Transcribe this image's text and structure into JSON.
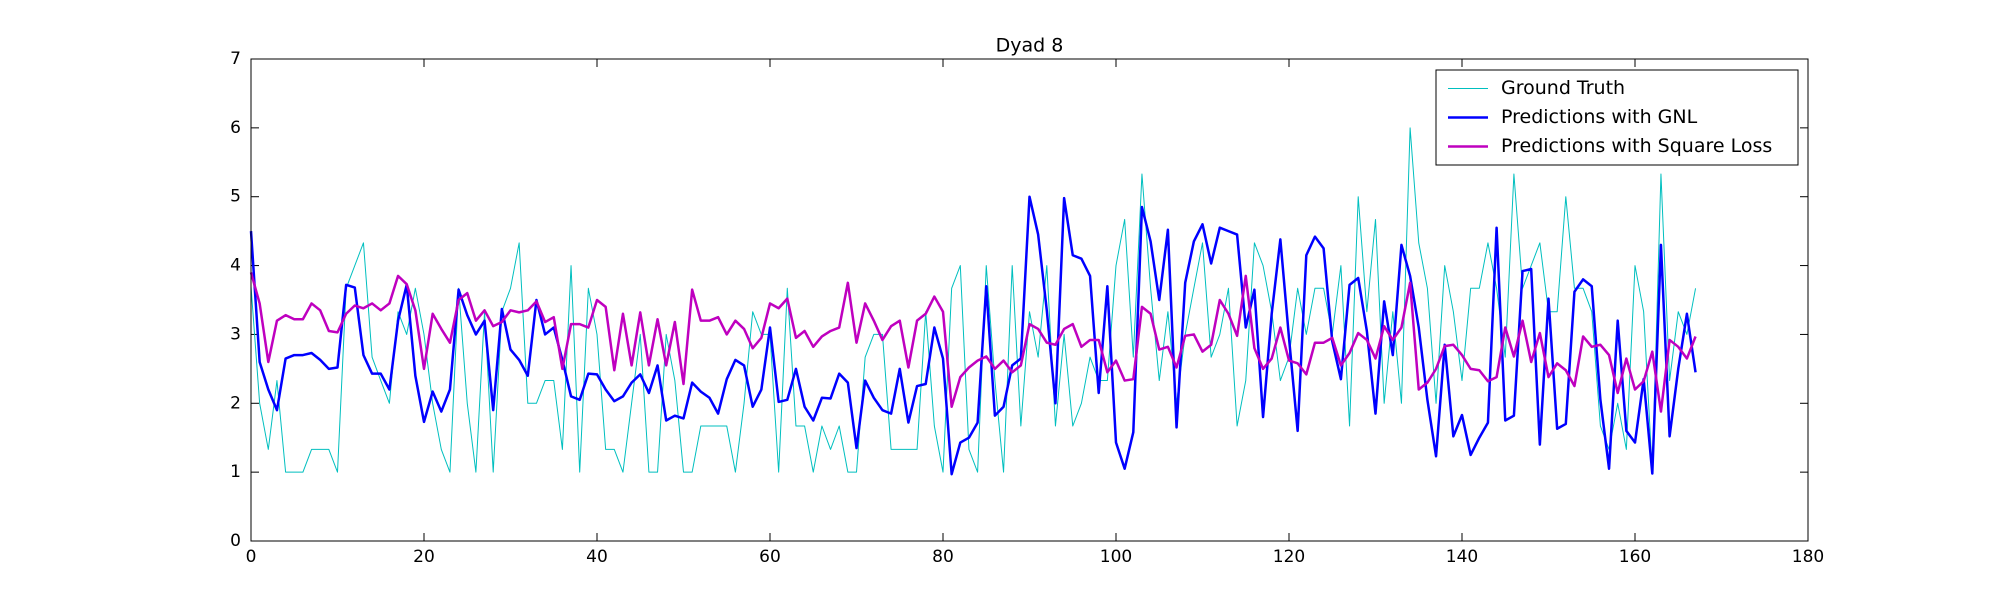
{
  "chart_data": {
    "type": "line",
    "title": "Dyad 8",
    "x": [
      0,
      1,
      2,
      3,
      4,
      5,
      6,
      7,
      8,
      9,
      10,
      11,
      12,
      13,
      14,
      15,
      16,
      17,
      18,
      19,
      20,
      21,
      22,
      23,
      24,
      25,
      26,
      27,
      28,
      29,
      30,
      31,
      32,
      33,
      34,
      35,
      36,
      37,
      38,
      39,
      40,
      41,
      42,
      43,
      44,
      45,
      46,
      47,
      48,
      49,
      50,
      51,
      52,
      53,
      54,
      55,
      56,
      57,
      58,
      59,
      60,
      61,
      62,
      63,
      64,
      65,
      66,
      67,
      68,
      69,
      70,
      71,
      72,
      73,
      74,
      75,
      76,
      77,
      78,
      79,
      80,
      81,
      82,
      83,
      84,
      85,
      86,
      87,
      88,
      89,
      90,
      91,
      92,
      93,
      94,
      95,
      96,
      97,
      98,
      99,
      100,
      101,
      102,
      103,
      104,
      105,
      106,
      107,
      108,
      109,
      110,
      111,
      112,
      113,
      114,
      115,
      116,
      117,
      118,
      119,
      120,
      121,
      122,
      123,
      124,
      125,
      126,
      127,
      128,
      129,
      130,
      131,
      132,
      133,
      134,
      135,
      136,
      137,
      138,
      139,
      140,
      141,
      142,
      143,
      144,
      145,
      146,
      147,
      148,
      149,
      150,
      151,
      152,
      153,
      154,
      155,
      156,
      157,
      158,
      159,
      160,
      161,
      162,
      163,
      164,
      165,
      166,
      167
    ],
    "series": [
      {
        "name": "Ground Truth",
        "color": "#00bfbf",
        "linewidth": 1,
        "values": [
          3.7,
          2,
          1.33,
          2.33,
          1,
          1,
          1,
          1.33,
          1.33,
          1.33,
          1,
          3.67,
          4,
          4.33,
          2.67,
          2.33,
          2,
          3.33,
          3,
          3.67,
          3,
          2,
          1.33,
          1,
          3.67,
          2,
          1,
          3.33,
          1,
          3.33,
          3.67,
          4.33,
          2,
          2,
          2.33,
          2.33,
          1.33,
          4,
          1,
          3.67,
          3,
          1.33,
          1.33,
          1,
          2,
          3,
          1,
          1,
          3,
          2.33,
          1,
          1,
          1.67,
          1.67,
          1.67,
          1.67,
          1,
          2,
          3.33,
          3,
          3,
          1,
          3.67,
          1.67,
          1.67,
          1,
          1.67,
          1.33,
          1.67,
          1,
          1,
          2.67,
          3,
          3,
          1.33,
          1.33,
          1.33,
          1.33,
          3.33,
          1.67,
          1,
          3.67,
          4,
          1.33,
          1,
          4,
          2.33,
          1,
          4,
          1.67,
          3.33,
          2.67,
          4,
          1.67,
          3,
          1.67,
          2,
          2.67,
          2.33,
          2.33,
          4,
          4.67,
          2.67,
          5.33,
          3.67,
          2.33,
          3.33,
          2,
          3,
          3.67,
          4.33,
          2.67,
          3,
          3.67,
          1.67,
          2.33,
          4.33,
          4,
          3.33,
          2.33,
          2.67,
          3.67,
          3,
          3.67,
          3.67,
          3,
          4,
          1.67,
          5,
          3.33,
          4.67,
          2,
          3.33,
          2,
          6,
          4.33,
          3.67,
          2,
          4,
          3.33,
          2.33,
          3.67,
          3.67,
          4.33,
          3.67,
          2.67,
          5.33,
          3.67,
          4,
          4.33,
          3.33,
          3.33,
          5,
          3.67,
          3.67,
          3.33,
          1.67,
          1.33,
          2,
          1.33,
          4,
          3.33,
          1,
          5.33,
          2.33,
          3.33,
          3,
          3.67
        ]
      },
      {
        "name": "Predictions with GNL",
        "color": "#0000ff",
        "linewidth": 2.5,
        "values": [
          4.5,
          2.6,
          2.2,
          1.9,
          2.65,
          2.7,
          2.7,
          2.73,
          2.63,
          2.5,
          2.52,
          3.72,
          3.68,
          2.7,
          2.43,
          2.43,
          2.2,
          3.2,
          3.72,
          2.4,
          1.73,
          2.17,
          1.88,
          2.2,
          3.65,
          3.28,
          3,
          3.2,
          1.9,
          3.37,
          2.78,
          2.63,
          2.4,
          3.5,
          3,
          3.1,
          2.63,
          2.1,
          2.05,
          2.43,
          2.42,
          2.2,
          2.03,
          2.1,
          2.3,
          2.42,
          2.15,
          2.55,
          1.75,
          1.82,
          1.78,
          2.3,
          2.17,
          2.08,
          1.85,
          2.35,
          2.63,
          2.55,
          1.95,
          2.2,
          3.1,
          2.02,
          2.05,
          2.5,
          1.95,
          1.75,
          2.08,
          2.07,
          2.43,
          2.3,
          1.35,
          2.33,
          2.08,
          1.9,
          1.85,
          2.5,
          1.72,
          2.25,
          2.28,
          3.1,
          2.65,
          0.97,
          1.43,
          1.5,
          1.72,
          3.7,
          1.82,
          1.95,
          2.55,
          2.65,
          5,
          4.45,
          3.35,
          2,
          4.98,
          4.15,
          4.1,
          3.85,
          2.15,
          3.7,
          1.43,
          1.05,
          1.58,
          4.85,
          4.35,
          3.5,
          4.52,
          1.65,
          3.75,
          4.35,
          4.6,
          4.03,
          4.55,
          4.5,
          4.45,
          3.1,
          3.65,
          1.8,
          3.3,
          4.38,
          2.95,
          1.6,
          4.15,
          4.42,
          4.25,
          2.9,
          2.35,
          3.72,
          3.82,
          3.05,
          1.85,
          3.48,
          2.7,
          4.3,
          3.85,
          3.1,
          2.05,
          1.23,
          2.85,
          1.52,
          1.83,
          1.25,
          1.5,
          1.72,
          4.55,
          1.75,
          1.82,
          3.92,
          3.95,
          1.4,
          3.52,
          1.63,
          1.7,
          3.62,
          3.8,
          3.7,
          2.05,
          1.05,
          3.2,
          1.6,
          1.43,
          2.35,
          0.98,
          4.3,
          1.52,
          2.5,
          3.3,
          2.45
        ]
      },
      {
        "name": "Predictions with Square Loss",
        "color": "#bf00bf",
        "linewidth": 2.5,
        "values": [
          3.9,
          3.45,
          2.6,
          3.2,
          3.28,
          3.22,
          3.22,
          3.45,
          3.35,
          3.05,
          3.03,
          3.3,
          3.42,
          3.38,
          3.45,
          3.35,
          3.45,
          3.85,
          3.73,
          3.35,
          2.5,
          3.3,
          3.08,
          2.88,
          3.5,
          3.6,
          3.2,
          3.35,
          3.12,
          3.18,
          3.35,
          3.32,
          3.35,
          3.48,
          3.18,
          3.25,
          2.5,
          3.15,
          3.15,
          3.1,
          3.5,
          3.4,
          2.48,
          3.3,
          2.55,
          3.32,
          2.55,
          3.22,
          2.55,
          3.18,
          2.28,
          3.65,
          3.2,
          3.2,
          3.25,
          3,
          3.2,
          3.08,
          2.8,
          2.95,
          3.45,
          3.38,
          3.52,
          2.95,
          3.05,
          2.82,
          2.97,
          3.05,
          3.1,
          3.75,
          2.88,
          3.45,
          3.2,
          2.92,
          3.12,
          3.2,
          2.52,
          3.2,
          3.3,
          3.55,
          3.33,
          1.95,
          2.38,
          2.52,
          2.62,
          2.68,
          2.5,
          2.62,
          2.45,
          2.55,
          3.15,
          3.08,
          2.88,
          2.85,
          3.08,
          3.15,
          2.82,
          2.92,
          2.92,
          2.45,
          2.62,
          2.33,
          2.35,
          3.4,
          3.3,
          2.78,
          2.82,
          2.52,
          2.98,
          3,
          2.75,
          2.85,
          3.5,
          3.3,
          2.98,
          3.85,
          2.8,
          2.5,
          2.65,
          3.1,
          2.62,
          2.58,
          2.42,
          2.88,
          2.88,
          2.95,
          2.55,
          2.73,
          3.02,
          2.92,
          2.65,
          3.12,
          2.92,
          3.1,
          3.75,
          2.2,
          2.3,
          2.5,
          2.83,
          2.85,
          2.7,
          2.5,
          2.48,
          2.32,
          2.38,
          3.1,
          2.68,
          3.2,
          2.6,
          3.02,
          2.38,
          2.58,
          2.48,
          2.25,
          2.97,
          2.82,
          2.85,
          2.7,
          2.15,
          2.65,
          2.2,
          2.32,
          2.75,
          1.88,
          2.92,
          2.82,
          2.65,
          2.97
        ]
      }
    ],
    "xlim": [
      0,
      180
    ],
    "xticks": [
      0,
      20,
      40,
      60,
      80,
      100,
      120,
      140,
      160,
      180
    ],
    "ylim": [
      0,
      7
    ],
    "yticks": [
      0,
      1,
      2,
      3,
      4,
      5,
      6,
      7
    ],
    "legend": "upper right"
  }
}
